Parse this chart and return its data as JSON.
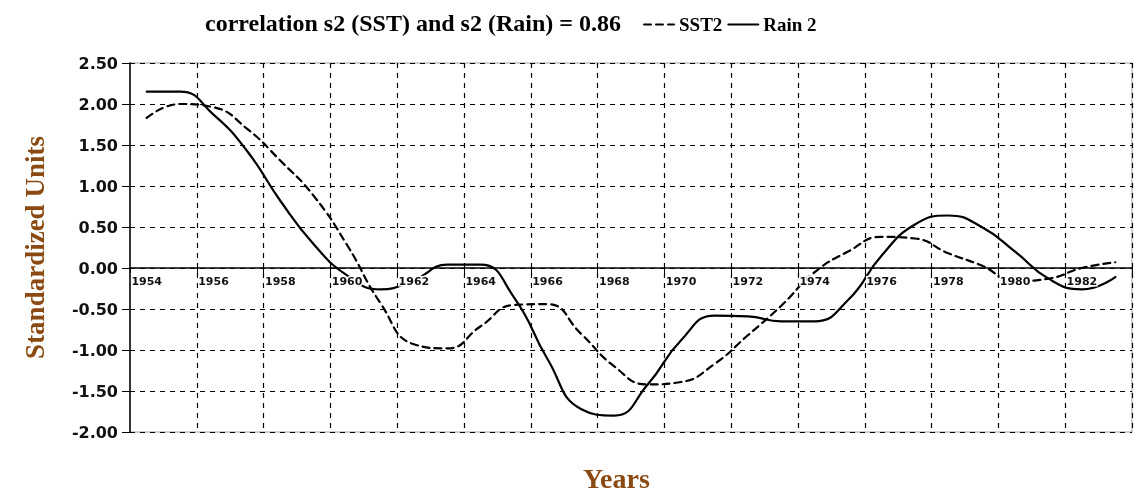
{
  "chart_data": {
    "type": "line",
    "title": "correlation s2 (SST) and s2 (Rain) = 0.86",
    "xlabel": "Years",
    "ylabel": "Standardized Units",
    "categories": [
      "1954",
      null,
      "1956",
      null,
      "1958",
      null,
      "1960",
      null,
      "1962",
      null,
      "1964",
      null,
      "1966",
      null,
      "1968",
      null,
      "1970",
      null,
      "1972",
      null,
      "1974",
      null,
      "1976",
      null,
      "1978",
      null,
      "1980",
      null,
      "1982",
      null
    ],
    "series": [
      {
        "name": "SST2",
        "color": "#000000",
        "line_style": "dashed",
        "values": [
          1.83,
          2.0,
          1.96,
          1.7,
          1.31,
          0.88,
          0.28,
          -0.43,
          -0.93,
          -0.98,
          -0.71,
          -0.45,
          -0.44,
          -0.8,
          -1.2,
          -1.42,
          -1.39,
          -1.17,
          -0.82,
          -0.46,
          -0.05,
          0.2,
          0.38,
          0.36,
          0.18,
          0.03,
          -0.16,
          -0.13,
          0.0,
          0.07
        ]
      },
      {
        "name": "Rain 2",
        "color": "#000000",
        "line_style": "solid",
        "values": [
          2.15,
          2.15,
          1.87,
          1.43,
          0.82,
          0.29,
          -0.09,
          -0.26,
          -0.15,
          0.04,
          0.04,
          -0.36,
          -1.11,
          -1.72,
          -1.8,
          -1.42,
          -0.88,
          -0.58,
          -0.59,
          -0.65,
          -0.65,
          -0.39,
          0.15,
          0.53,
          0.64,
          0.5,
          0.2,
          -0.13,
          -0.26,
          -0.11
        ]
      }
    ],
    "ylim": [
      -2,
      2.5
    ],
    "yticks": [
      {
        "value": -2,
        "label": "-2.00"
      },
      {
        "value": -1.5,
        "label": "-1.50"
      },
      {
        "value": -1,
        "label": "-1.00"
      },
      {
        "value": -0.5,
        "label": "-0.50"
      },
      {
        "value": 0,
        "label": "0.00"
      },
      {
        "value": 0.5,
        "label": "0.50"
      },
      {
        "value": 1,
        "label": "1.00"
      },
      {
        "value": 1.5,
        "label": "1.50"
      },
      {
        "value": 2,
        "label": "2.00"
      },
      {
        "value": 2.5,
        "label": "2.50"
      }
    ],
    "grid": true,
    "legend": "top",
    "marker": "none"
  }
}
